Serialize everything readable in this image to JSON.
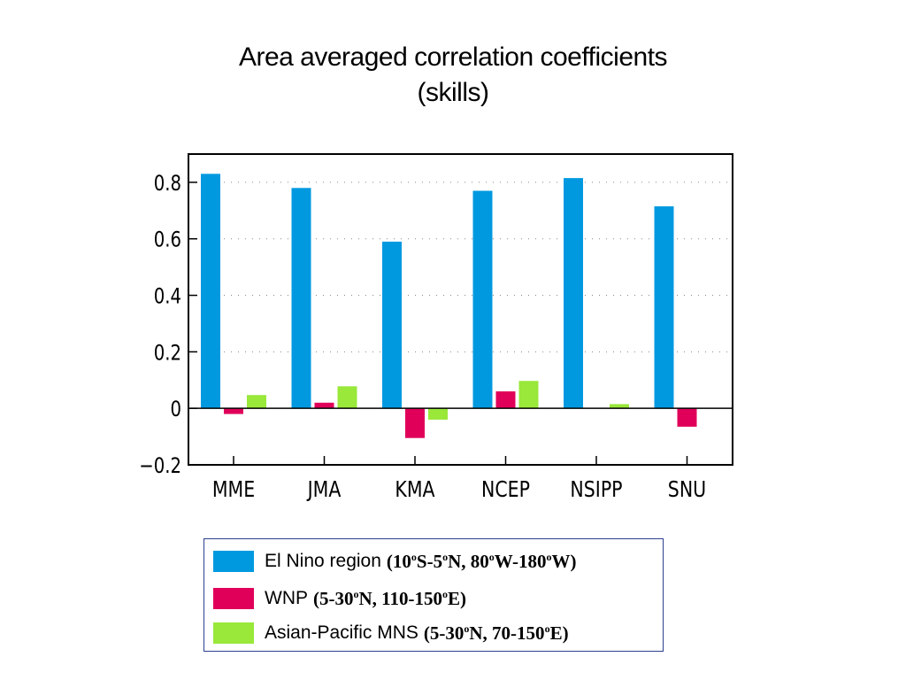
{
  "title_line1": "Area averaged correlation coefficients",
  "title_line2": "(skills)",
  "chart_data": {
    "type": "bar",
    "categories": [
      "MME",
      "JMA",
      "KMA",
      "NCEP",
      "NSIPP",
      "SNU"
    ],
    "series": [
      {
        "name": "El Nino region",
        "color": "#0099e0",
        "values": [
          0.83,
          0.78,
          0.59,
          0.77,
          0.815,
          0.715
        ]
      },
      {
        "name": "WNP",
        "color": "#e0005a",
        "values": [
          -0.02,
          0.02,
          -0.105,
          0.06,
          0.0,
          -0.065
        ]
      },
      {
        "name": "Asian-Pacific MNS",
        "color": "#99e83a",
        "values": [
          0.047,
          0.078,
          -0.04,
          0.097,
          0.015,
          0.0
        ]
      }
    ],
    "ylim": [
      -0.2,
      0.9
    ],
    "yticks": [
      -0.2,
      0,
      0.2,
      0.4,
      0.6,
      0.8
    ],
    "ytick_labels": [
      "−0.2",
      "0",
      "0.2",
      "0.4",
      "0.6",
      "0.8"
    ],
    "grid": "horizontal dotted",
    "legend_position": "bottom"
  },
  "legend": [
    {
      "name": "El Nino region",
      "color": "#0099e0",
      "region_parts": [
        "(10",
        "o",
        "S-5",
        "o",
        "N, 80",
        "o",
        "W-180",
        "o",
        "W)"
      ]
    },
    {
      "name": "WNP",
      "color": "#e0005a",
      "region_parts": [
        "(5-30",
        "o",
        "N, 110-150",
        "o",
        "E)"
      ]
    },
    {
      "name": "Asian-Pacific MNS",
      "color": "#99e83a",
      "region_parts": [
        "(5-30",
        "o",
        "N, 70-150",
        "o",
        "E)"
      ]
    }
  ]
}
